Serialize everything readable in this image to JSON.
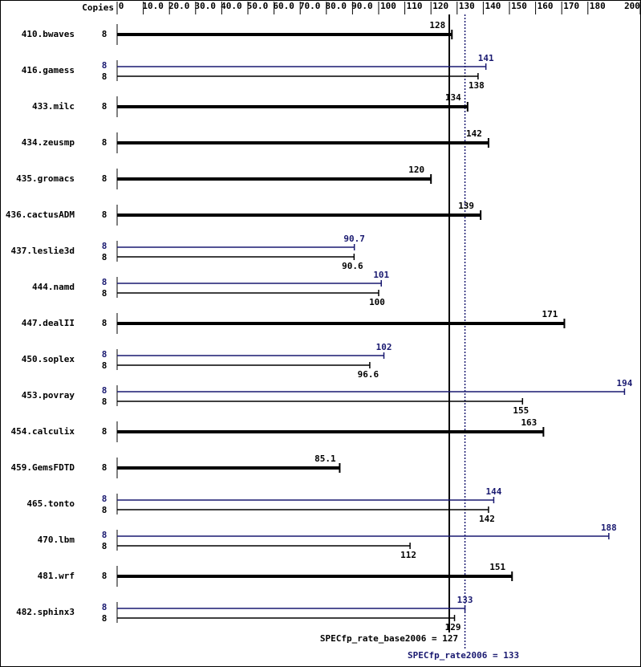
{
  "chart_data": {
    "type": "bar",
    "copies_label": "Copies",
    "categories": [
      "410.bwaves",
      "416.gamess",
      "433.milc",
      "434.zeusmp",
      "435.gromacs",
      "436.cactusADM",
      "437.leslie3d",
      "444.namd",
      "447.dealII",
      "450.soplex",
      "453.povray",
      "454.calculix",
      "459.GemsFDTD",
      "465.tonto",
      "470.lbm",
      "481.wrf",
      "482.sphinx3"
    ],
    "base_copies": [
      8,
      8,
      8,
      8,
      8,
      8,
      8,
      8,
      8,
      8,
      8,
      8,
      8,
      8,
      8,
      8,
      8
    ],
    "peak_copies": [
      null,
      8,
      null,
      null,
      null,
      null,
      8,
      8,
      null,
      8,
      8,
      null,
      null,
      8,
      8,
      null,
      8
    ],
    "base_values": [
      128,
      138,
      134,
      142,
      120,
      139,
      90.6,
      100,
      171,
      96.6,
      155,
      163,
      85.1,
      142,
      112,
      151,
      129
    ],
    "peak_values": [
      null,
      141,
      null,
      null,
      null,
      null,
      90.7,
      101,
      null,
      102,
      194,
      null,
      null,
      144,
      188,
      null,
      133
    ],
    "base_color": "#000000",
    "peak_color": "#191970",
    "xlim": [
      0,
      200
    ],
    "xticks": [
      0,
      {
        "value": 10,
        "label": "10.0"
      },
      {
        "value": 20,
        "label": "20.0"
      },
      {
        "value": 30,
        "label": "30.0"
      },
      {
        "value": 40,
        "label": "40.0"
      },
      {
        "value": 50,
        "label": "50.0"
      },
      {
        "value": 60,
        "label": "60.0"
      },
      {
        "value": 70,
        "label": "70.0"
      },
      {
        "value": 80,
        "label": "80.0"
      },
      {
        "value": 90,
        "label": "90.0"
      },
      100,
      110,
      120,
      130,
      140,
      150,
      160,
      170,
      180,
      200
    ],
    "base_line": {
      "value": 127,
      "label": "SPECfp_rate_base2006 = 127"
    },
    "peak_line": {
      "value": 133,
      "label": "SPECfp_rate2006 = 133"
    }
  }
}
